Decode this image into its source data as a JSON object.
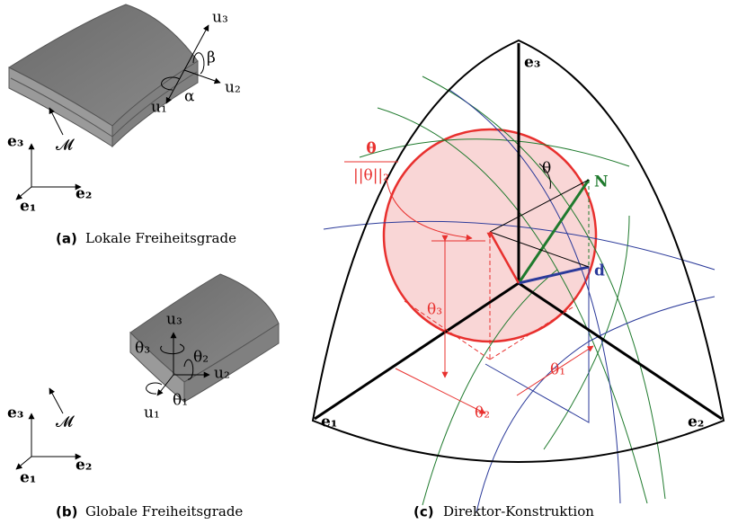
{
  "panels": [
    {
      "label": "(a)",
      "caption": "Lokale Freiheitsgrade",
      "labels": [
        "u₃",
        "β",
        "u₂",
        "u₁",
        "α",
        "𝓜",
        "e₃",
        "e₁",
        "e₂"
      ]
    },
    {
      "label": "(b)",
      "caption": "Globale Freiheitsgrade",
      "labels": [
        "u₃",
        "θ₃",
        "θ₂",
        "u₂",
        "θ₁",
        "u₁",
        "𝓜",
        "e₃",
        "e₁",
        "e₂"
      ]
    },
    {
      "label": "(c)",
      "caption": "Direktor-Konstruktion",
      "labels": [
        "e₃",
        "e₁",
        "e₂",
        "θ",
        "||θ||₂",
        "θ",
        "N",
        "d",
        "θ₃",
        "θ₁",
        "θ₂"
      ]
    }
  ]
}
